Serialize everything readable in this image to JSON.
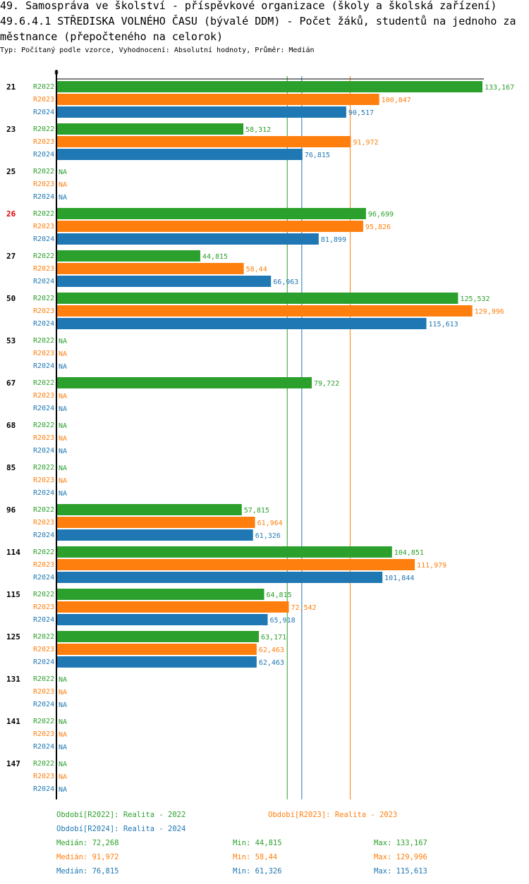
{
  "title_lines": [
    "49. Samospráva ve školství - příspěvkové organizace (školy a školská zařízení)",
    "49.6.4.1 STŘEDISKA VOLNÉHO ČASU (bývalé DDM) - Počet žáků, studentů na jednoho za",
    "městnance (přepočteného na celorok)"
  ],
  "subtitle": "Typ: Počítaný podle vzorce, Vyhodnocení: Absolutní hodnoty, Průměr: Medián",
  "colors": {
    "R2022": "#2ca02c",
    "R2023": "#ff7f0e",
    "R2024": "#1f77b4",
    "highlight": "#dd0000"
  },
  "chart_data": {
    "type": "bar",
    "orientation": "horizontal",
    "axis_zero_label": "0",
    "xlim": [
      0,
      140000
    ],
    "series_names": [
      "R2022",
      "R2023",
      "R2024"
    ],
    "missing_label": "NA",
    "highlight_category": "26",
    "categories": [
      {
        "id": "21",
        "values": [
          133.167,
          100.847,
          90.517
        ],
        "labels": [
          "133,167",
          "100,847",
          "90,517"
        ]
      },
      {
        "id": "23",
        "values": [
          58.312,
          91.972,
          76.815
        ],
        "labels": [
          "58,312",
          "91,972",
          "76,815"
        ]
      },
      {
        "id": "25",
        "values": [
          null,
          null,
          null
        ],
        "labels": [
          "NA",
          "NA",
          "NA"
        ]
      },
      {
        "id": "26",
        "values": [
          96.699,
          95.826,
          81.899
        ],
        "labels": [
          "96,699",
          "95,826",
          "81,899"
        ]
      },
      {
        "id": "27",
        "values": [
          44.815,
          58.44,
          66.963
        ],
        "labels": [
          "44,815",
          "58,44",
          "66,963"
        ]
      },
      {
        "id": "50",
        "values": [
          125.532,
          129.996,
          115.613
        ],
        "labels": [
          "125,532",
          "129,996",
          "115,613"
        ]
      },
      {
        "id": "53",
        "values": [
          null,
          null,
          null
        ],
        "labels": [
          "NA",
          "NA",
          "NA"
        ]
      },
      {
        "id": "67",
        "values": [
          79.722,
          null,
          null
        ],
        "labels": [
          "79,722",
          "NA",
          "NA"
        ]
      },
      {
        "id": "68",
        "values": [
          null,
          null,
          null
        ],
        "labels": [
          "NA",
          "NA",
          "NA"
        ]
      },
      {
        "id": "85",
        "values": [
          null,
          null,
          null
        ],
        "labels": [
          "NA",
          "NA",
          "NA"
        ]
      },
      {
        "id": "96",
        "values": [
          57.815,
          61.964,
          61.326
        ],
        "labels": [
          "57,815",
          "61,964",
          "61,326"
        ]
      },
      {
        "id": "114",
        "values": [
          104.851,
          111.979,
          101.844
        ],
        "labels": [
          "104,851",
          "111,979",
          "101,844"
        ]
      },
      {
        "id": "115",
        "values": [
          64.815,
          72.542,
          65.918
        ],
        "labels": [
          "64,815",
          "72,542",
          "65,918"
        ]
      },
      {
        "id": "125",
        "values": [
          63.171,
          62.463,
          62.463
        ],
        "labels": [
          "63,171",
          "62,463",
          "62,463"
        ]
      },
      {
        "id": "131",
        "values": [
          null,
          null,
          null
        ],
        "labels": [
          "NA",
          "NA",
          "NA"
        ]
      },
      {
        "id": "141",
        "values": [
          null,
          null,
          null
        ],
        "labels": [
          "NA",
          "NA",
          "NA"
        ]
      },
      {
        "id": "147",
        "values": [
          null,
          null,
          null
        ],
        "labels": [
          "NA",
          "NA",
          "NA"
        ]
      }
    ],
    "scale_max": 140,
    "median_lines": {
      "R2022": 72.268,
      "R2023": 91.972,
      "R2024": 76.815
    }
  },
  "legend": {
    "r2022": "Období[R2022]: Realita - 2022",
    "r2023": "Období[R2023]: Realita - 2023",
    "r2024": "Období[R2024]: Realita - 2024"
  },
  "stats": {
    "r2022": {
      "median": "Medián: 72,268",
      "min": "Min: 44,815",
      "max": "Max: 133,167"
    },
    "r2023": {
      "median": "Medián: 91,972",
      "min": "Min: 58,44",
      "max": "Max: 129,996"
    },
    "r2024": {
      "median": "Medián: 76,815",
      "min": "Min: 61,326",
      "max": "Max: 115,613"
    }
  }
}
